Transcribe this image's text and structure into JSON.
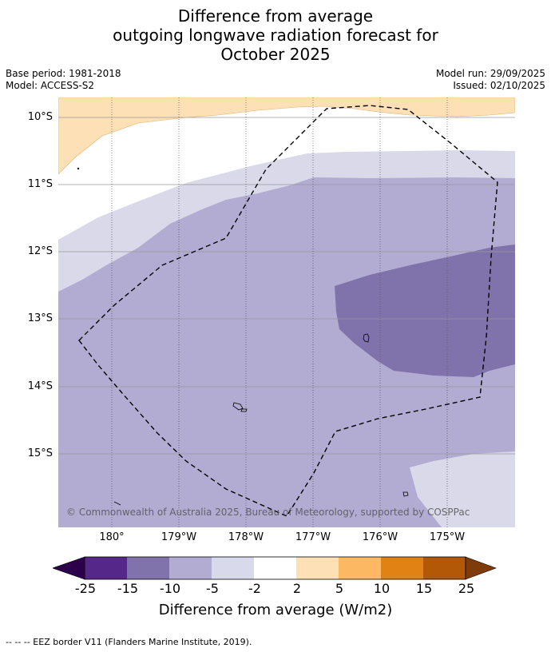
{
  "title": {
    "line1": "Difference from average",
    "line2": "outgoing longwave radiation forecast for",
    "line3": "October 2025"
  },
  "meta": {
    "base_period": "Base period: 1981-2018",
    "model": "Model: ACCESS-S2",
    "model_run": "Model run: 29/09/2025",
    "issued": "Issued: 02/10/2025"
  },
  "map": {
    "lat_labels": [
      "10°S",
      "11°S",
      "12°S",
      "13°S",
      "14°S",
      "15°S"
    ],
    "lon_labels": [
      "180°",
      "179°W",
      "178°W",
      "177°W",
      "176°W",
      "175°W"
    ],
    "copyright": "© Commonwealth of Australia 2025, Bureau of Meteorology, supported by COSPPac",
    "colors": {
      "above_2_5": "#fde0b6",
      "neutral": "#ffffff",
      "below_2_5": "#d9d9ea",
      "below_5_10": "#b2abd2",
      "below_10_15": "#8073ac"
    }
  },
  "colorbar": {
    "ticks": [
      "-25",
      "-15",
      "-10",
      "-5",
      "-2",
      "2",
      "5",
      "10",
      "15",
      "25"
    ],
    "colors": [
      "#2d004b",
      "#542788",
      "#8073ac",
      "#b2abd2",
      "#d8daeb",
      "#ffffff",
      "#fee0b6",
      "#fdb863",
      "#e08214",
      "#b35806",
      "#7f3b08"
    ],
    "label": "Difference from average (W/m2)"
  },
  "footnote": "--  --  -- EEZ border V11 (Flanders Marine Institute, 2019)."
}
